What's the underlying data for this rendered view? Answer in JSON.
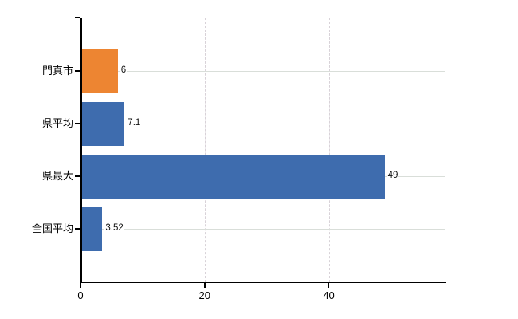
{
  "chart_data": {
    "type": "bar",
    "orientation": "horizontal",
    "title": "",
    "xlabel": "",
    "ylabel": "",
    "categories": [
      "門真市",
      "県平均",
      "県最大",
      "全国平均"
    ],
    "values": [
      6,
      7.1,
      49,
      3.52
    ],
    "value_labels": [
      "6",
      "7.1",
      "49",
      "3.52"
    ],
    "bar_colors": [
      "#ED8532",
      "#3E6CAE",
      "#3E6CAE",
      "#3E6CAE"
    ],
    "x_ticks": [
      0,
      20,
      40
    ],
    "x_tick_labels": [
      "0",
      "20",
      "40"
    ],
    "xlim": [
      0,
      58.8
    ],
    "grid": "on",
    "grid_style": {
      "horizontal": "solid",
      "vertical": "dashed",
      "top_border": "dashed"
    },
    "legend": "none",
    "colors": {
      "axis": "#000000",
      "horizontal_grid": "#d9ded9",
      "vertical_grid": "#d8d2d8",
      "text": "#000000",
      "background": "#ffffff"
    }
  }
}
